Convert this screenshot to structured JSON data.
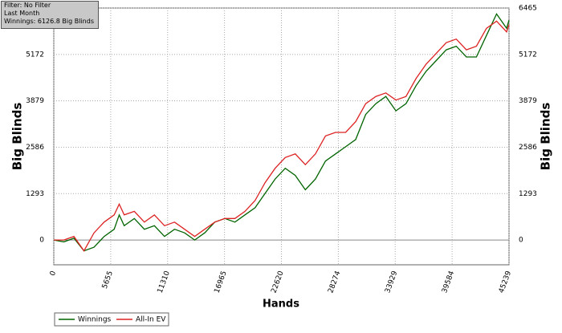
{
  "chart_data": {
    "type": "line",
    "annotations": [
      "Filter: No Filter",
      "Last Month",
      "Winnings: 6126.8 Big Blinds"
    ],
    "x_label": "Hands",
    "y_label": "Big Blinds",
    "x": [
      0,
      1000,
      2000,
      3000,
      4000,
      5000,
      6000,
      6500,
      7000,
      8000,
      9000,
      10000,
      11000,
      12000,
      13000,
      14000,
      15000,
      16000,
      17000,
      18000,
      19000,
      20000,
      21000,
      22000,
      23000,
      24000,
      25000,
      26000,
      27000,
      28000,
      29000,
      30000,
      31000,
      32000,
      33000,
      34000,
      35000,
      36000,
      37000,
      38000,
      39000,
      40000,
      41000,
      42000,
      43000,
      44000,
      45000,
      45239
    ],
    "series": [
      {
        "name": "Winnings",
        "color": "#006400",
        "values": [
          0,
          -50,
          50,
          -300,
          -200,
          100,
          300,
          700,
          400,
          600,
          300,
          400,
          100,
          300,
          200,
          0,
          200,
          500,
          600,
          500,
          700,
          900,
          1300,
          1700,
          2000,
          1800,
          1400,
          1700,
          2200,
          2400,
          2600,
          2800,
          3500,
          3800,
          4000,
          3600,
          3800,
          4300,
          4700,
          5000,
          5300,
          5400,
          5100,
          5100,
          5700,
          6300,
          5900,
          6127
        ]
      },
      {
        "name": "All-In EV",
        "color": "#dd2222",
        "values": [
          0,
          0,
          100,
          -300,
          200,
          500,
          700,
          1000,
          700,
          800,
          500,
          700,
          400,
          500,
          300,
          100,
          300,
          500,
          600,
          600,
          800,
          1100,
          1600,
          2000,
          2300,
          2400,
          2100,
          2400,
          2900,
          3000,
          3000,
          3300,
          3800,
          4000,
          4100,
          3900,
          4000,
          4500,
          4900,
          5200,
          5500,
          5600,
          5300,
          5400,
          5900,
          6100,
          5800,
          6000
        ]
      }
    ],
    "xlim": [
      0,
      45239
    ],
    "xticks": [
      0,
      5655,
      11310,
      16965,
      22620,
      28274,
      33929,
      39584,
      45239
    ],
    "ylim": [
      -690,
      6465
    ],
    "yticks": [
      0,
      1293,
      2586,
      3879,
      5172,
      6465
    ],
    "grid": true
  }
}
